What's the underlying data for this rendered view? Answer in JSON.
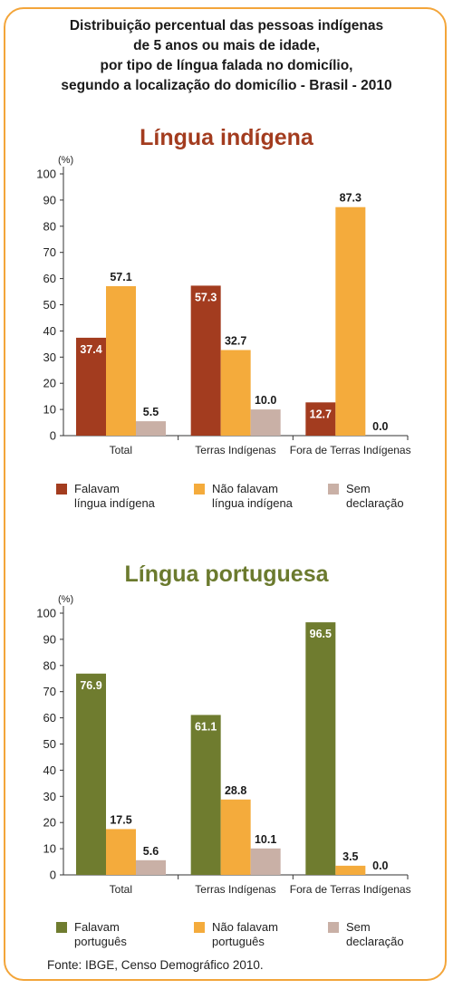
{
  "title_lines": [
    "Distribuição percentual das pessoas indígenas",
    "de 5 anos ou mais de idade,",
    "por tipo de língua falada no domicílio,",
    "segundo a localização do domicílio - Brasil - 2010"
  ],
  "source": "Fonte: IBGE, Censo Demográfico 2010.",
  "colors": {
    "frame": "#f3a53a",
    "indigena_title": "#a33c1f",
    "portuguesa_title": "#6b7a2e",
    "c1_falavam": "#a33c1f",
    "c1_nao": "#f4ab3c",
    "c1_sem": "#c9b0a6",
    "c2_falavam": "#6f7c2f",
    "c2_nao": "#f4ab3c",
    "c2_sem": "#c9b0a6"
  },
  "chart_data": [
    {
      "type": "bar",
      "title": "Língua indígena",
      "unit_label": "(%)",
      "ylim": [
        0,
        100
      ],
      "yticks": [
        0,
        10,
        20,
        30,
        40,
        50,
        60,
        70,
        80,
        90,
        100
      ],
      "categories": [
        "Total",
        "Terras Indígenas",
        "Fora de Terras Indígenas"
      ],
      "series": [
        {
          "name_lines": [
            "Falavam",
            "língua indígena"
          ],
          "values": [
            37.4,
            57.3,
            12.7
          ],
          "label_color": "#ffffff"
        },
        {
          "name_lines": [
            "Não falavam",
            "língua indígena"
          ],
          "values": [
            57.1,
            32.7,
            87.3
          ],
          "label_color": "#1a1a1a"
        },
        {
          "name_lines": [
            "Sem",
            "declaração"
          ],
          "values": [
            5.5,
            10.0,
            0.0
          ],
          "label_color": "#1a1a1a"
        }
      ],
      "grid": false,
      "legend_position": "bottom"
    },
    {
      "type": "bar",
      "title": "Língua portuguesa",
      "unit_label": "(%)",
      "ylim": [
        0,
        100
      ],
      "yticks": [
        0,
        10,
        20,
        30,
        40,
        50,
        60,
        70,
        80,
        90,
        100
      ],
      "categories": [
        "Total",
        "Terras Indígenas",
        "Fora de Terras Indígenas"
      ],
      "series": [
        {
          "name_lines": [
            "Falavam",
            "português"
          ],
          "values": [
            76.9,
            61.1,
            96.5
          ],
          "label_color": "#ffffff"
        },
        {
          "name_lines": [
            "Não falavam",
            "português"
          ],
          "values": [
            17.5,
            28.8,
            3.5
          ],
          "label_color": "#1a1a1a"
        },
        {
          "name_lines": [
            "Sem",
            "declaração"
          ],
          "values": [
            5.6,
            10.1,
            0.0
          ],
          "label_color": "#1a1a1a"
        }
      ],
      "grid": false,
      "legend_position": "bottom"
    }
  ]
}
